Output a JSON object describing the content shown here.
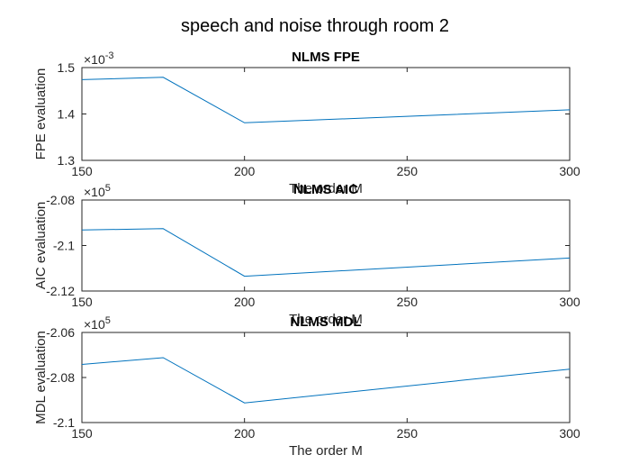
{
  "figure": {
    "suptitle": "speech and noise through room 2"
  },
  "colors": {
    "line": "#0072BD",
    "axis": "#262626",
    "background": "#ffffff"
  },
  "chart_data": [
    {
      "type": "line",
      "title": "NLMS FPE",
      "xlabel": "The order M",
      "ylabel": "FPE evaluation",
      "exponent": "×10",
      "exponent_power": "-3",
      "xlim": [
        150,
        300
      ],
      "ylim": [
        1.3,
        1.5
      ],
      "xticks": [
        150,
        200,
        250,
        300
      ],
      "xtick_labels": [
        "150",
        "200",
        "250",
        "300"
      ],
      "yticks": [
        1.3,
        1.4,
        1.5
      ],
      "ytick_labels": [
        "1.3",
        "1.4",
        "1.5"
      ],
      "grid": false,
      "x": [
        150,
        175,
        200,
        300
      ],
      "y": [
        1.474,
        1.479,
        1.381,
        1.409
      ]
    },
    {
      "type": "line",
      "title": "NLMS AIC",
      "xlabel": "The order M",
      "ylabel": "AIC evaluation",
      "exponent": "×10",
      "exponent_power": "5",
      "xlim": [
        150,
        300
      ],
      "ylim": [
        -2.12,
        -2.08
      ],
      "xticks": [
        150,
        200,
        250,
        300
      ],
      "xtick_labels": [
        "150",
        "200",
        "250",
        "300"
      ],
      "yticks": [
        -2.12,
        -2.1,
        -2.08
      ],
      "ytick_labels": [
        "-2.12",
        "-2.1",
        "-2.08"
      ],
      "grid": false,
      "x": [
        150,
        175,
        200,
        300
      ],
      "y": [
        -2.0932,
        -2.0926,
        -2.1135,
        -2.1055
      ]
    },
    {
      "type": "line",
      "title": "NLMS MDL",
      "xlabel": "The order M",
      "ylabel": "MDL evaluation",
      "exponent": "×10",
      "exponent_power": "5",
      "xlim": [
        150,
        300
      ],
      "ylim": [
        -2.1,
        -2.06
      ],
      "xticks": [
        150,
        200,
        250,
        300
      ],
      "xtick_labels": [
        "150",
        "200",
        "250",
        "300"
      ],
      "yticks": [
        -2.1,
        -2.08,
        -2.06
      ],
      "ytick_labels": [
        "-2.1",
        "-2.08",
        "-2.06"
      ],
      "grid": false,
      "x": [
        150,
        175,
        200,
        300
      ],
      "y": [
        -2.0742,
        -2.0712,
        -2.0913,
        -2.0763
      ]
    }
  ]
}
